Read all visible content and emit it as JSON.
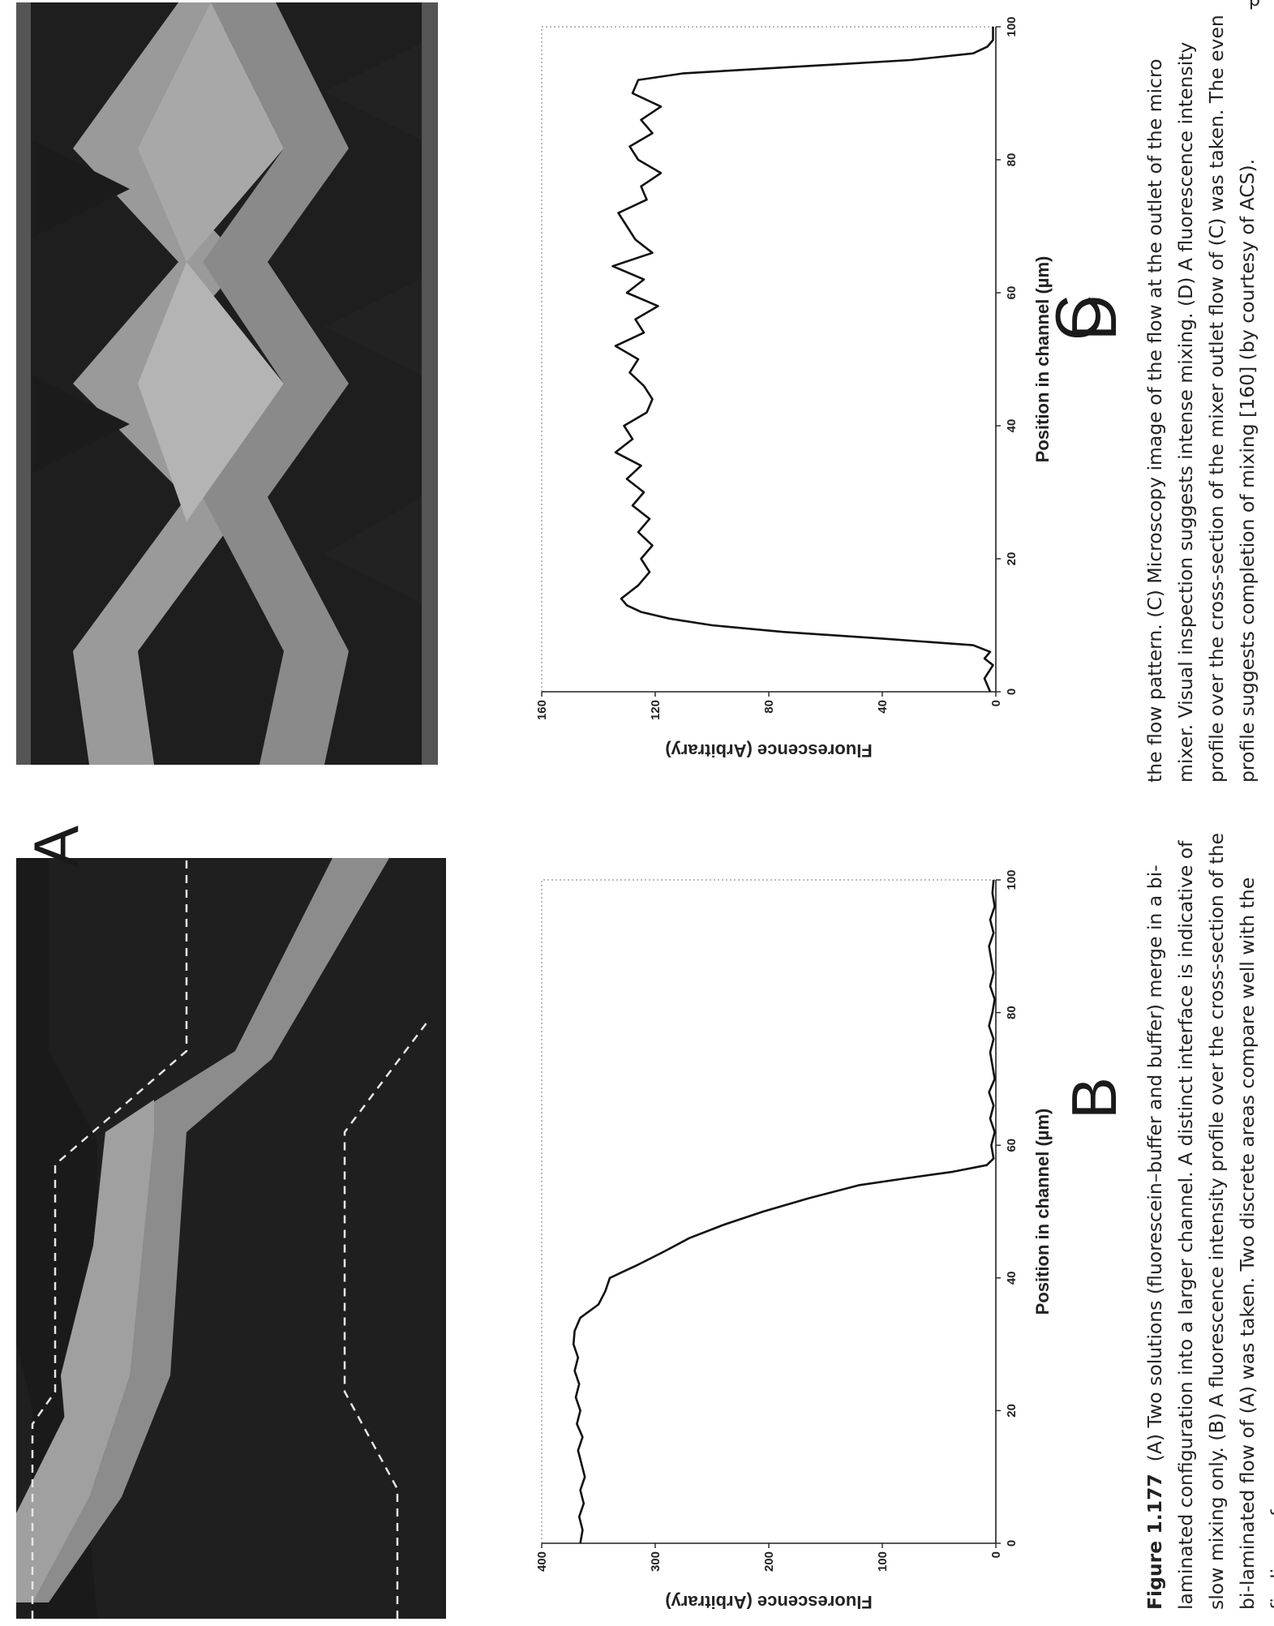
{
  "top_partial_text": "p",
  "panels": {
    "A": "A",
    "B": "B",
    "C": "C",
    "D": "D"
  },
  "captions": {
    "left": {
      "label": "Figure 1.177",
      "text": "(A) Two solutions (fluorescein–buffer and buffer) merge in a bi-laminated configuration into a larger channel. A distinct interface is indicative of slow mixing only. (B) A fluorescence intensity profile over the cross-section of the bi-laminated flow of (A) was taken. Two discrete areas compare well with the findings of"
    },
    "right": {
      "text": "the flow pattern. (C) Microscopy image of the flow at the outlet of the micro mixer. Visual inspection suggests intense mixing. (D) A fluorescence intensity profile over the cross-section of the mixer outlet flow of (C) was taken. The even profile suggests completion of mixing [160] (by courtesy of ACS)."
    }
  },
  "chart_data": [
    {
      "panel": "B",
      "type": "line",
      "xlabel": "Position in channel (µm)",
      "ylabel": "Fluorescence (Arbitrary)",
      "xlim": [
        0,
        100
      ],
      "ylim": [
        0,
        400
      ],
      "xticks": [
        "0",
        "20",
        "40",
        "60",
        "80",
        "100"
      ],
      "yticks": [
        "0",
        "100",
        "200",
        "300",
        "400"
      ],
      "x": [
        0,
        2,
        4,
        6,
        8,
        10,
        12,
        14,
        16,
        18,
        20,
        22,
        24,
        26,
        28,
        30,
        32,
        34,
        36,
        38,
        40,
        42,
        44,
        46,
        48,
        50,
        52,
        54,
        55,
        56,
        57,
        58,
        60,
        62,
        64,
        66,
        68,
        70,
        72,
        74,
        76,
        78,
        80,
        82,
        84,
        86,
        88,
        90,
        92,
        94,
        96,
        98,
        100
      ],
      "y": [
        366,
        364,
        367,
        363,
        366,
        362,
        365,
        368,
        364,
        369,
        366,
        370,
        367,
        371,
        368,
        372,
        371,
        366,
        350,
        344,
        340,
        315,
        292,
        270,
        240,
        205,
        165,
        120,
        80,
        38,
        8,
        2,
        4,
        1,
        5,
        2,
        6,
        1,
        3,
        5,
        2,
        6,
        3,
        1,
        5,
        2,
        4,
        6,
        2,
        5,
        1,
        3,
        2
      ]
    },
    {
      "panel": "D",
      "type": "line",
      "xlabel": "Position in channel (µm)",
      "ylabel": "Fluorescence (Arbitrary)",
      "xlim": [
        0,
        100
      ],
      "ylim": [
        0,
        160
      ],
      "xticks": [
        "0",
        "20",
        "40",
        "60",
        "80",
        "100"
      ],
      "yticks": [
        "0",
        "40",
        "80",
        "120",
        "160"
      ],
      "x": [
        0,
        2,
        4,
        5,
        6,
        7,
        8,
        9,
        10,
        11,
        12,
        13,
        14,
        15,
        16,
        18,
        20,
        22,
        24,
        26,
        28,
        30,
        32,
        34,
        36,
        38,
        40,
        42,
        44,
        46,
        48,
        50,
        52,
        54,
        56,
        58,
        60,
        62,
        64,
        66,
        68,
        70,
        72,
        74,
        76,
        78,
        80,
        82,
        84,
        86,
        88,
        90,
        92,
        93,
        94,
        95,
        96,
        97,
        98,
        100
      ],
      "y": [
        2,
        4,
        1,
        4,
        2,
        8,
        40,
        75,
        100,
        115,
        125,
        130,
        132,
        129,
        126,
        122,
        125,
        121,
        126,
        122,
        128,
        124,
        130,
        125,
        134,
        128,
        131,
        123,
        121,
        124,
        129,
        126,
        134,
        124,
        127,
        119,
        130,
        124,
        135,
        121,
        127,
        130,
        133,
        123,
        125,
        118,
        126,
        129,
        121,
        125,
        118,
        128,
        126,
        110,
        70,
        30,
        8,
        3,
        1,
        1
      ]
    }
  ]
}
